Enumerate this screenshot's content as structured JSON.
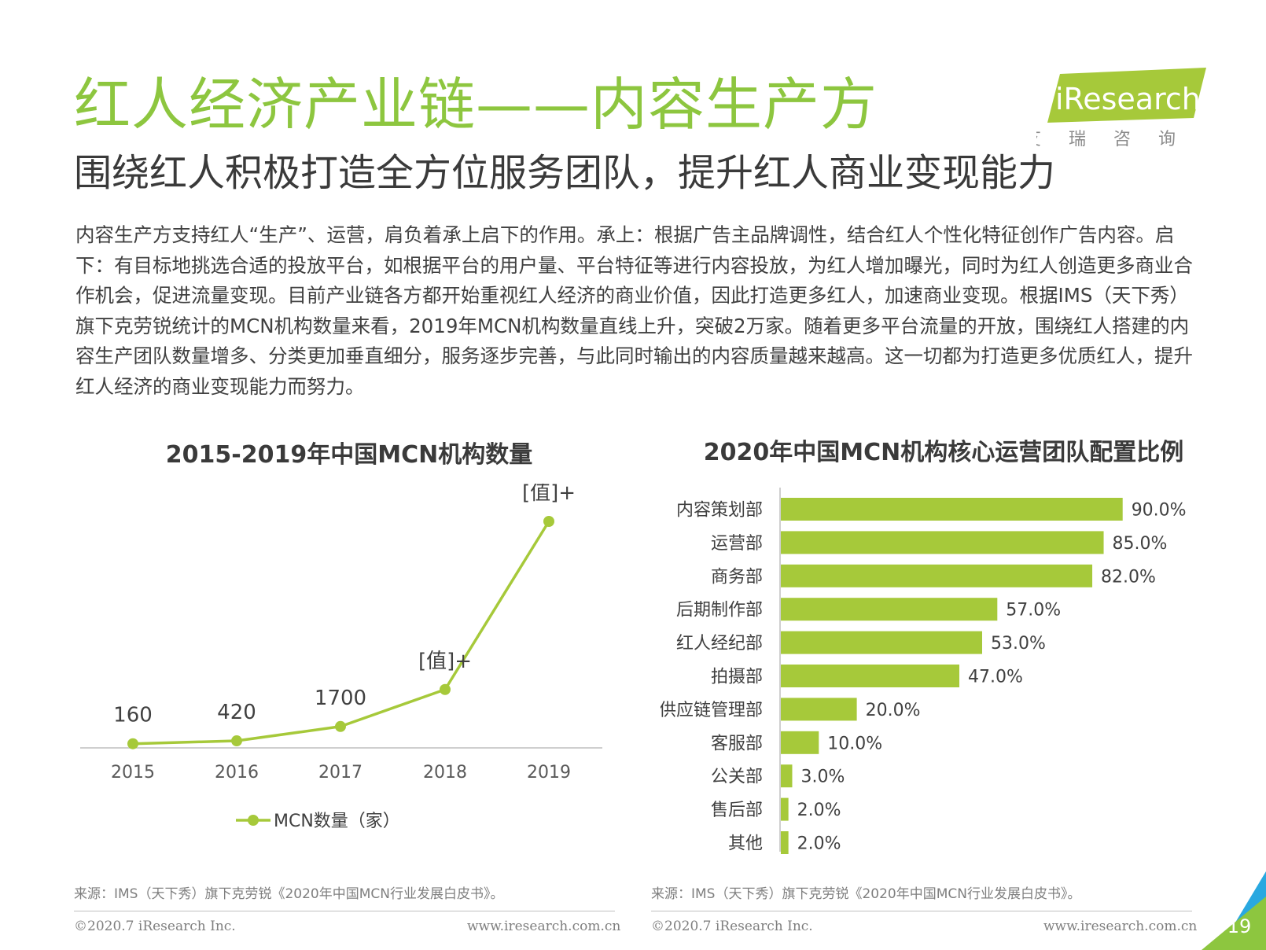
{
  "header": {
    "title": "红人经济产业链——内容生产方",
    "subtitle": "围绕红人积极打造全方位服务团队，提升红人商业变现能力",
    "logo_text": "iResearch",
    "logo_sub": "艾 瑞 咨 询"
  },
  "body": {
    "paragraph": "内容生产方支持红人“生产”、运营，肩负着承上启下的作用。承上：根据广告主品牌调性，结合红人个性化特征创作广告内容。启下：有目标地挑选合适的投放平台，如根据平台的用户量、平台特征等进行内容投放，为红人增加曝光，同时为红人创造更多商业合作机会，促进流量变现。目前产业链各方都开始重视红人经济的商业价值，因此打造更多红人，加速商业变现。根据IMS（天下秀）旗下克劳锐统计的MCN机构数量来看，2019年MCN机构数量直线上升，突破2万家。随着更多平台流量的开放，围绕红人搭建的内容生产团队数量增多、分类更加垂直细分，服务逐步完善，与此同时输出的内容质量越来越高。这一切都为打造更多优质红人，提升红人经济的商业变现能力而努力。"
  },
  "chart_data": [
    {
      "type": "line",
      "title": "2015-2019年中国MCN机构数量",
      "x": [
        "2015",
        "2016",
        "2017",
        "2018",
        "2019"
      ],
      "series": [
        {
          "name": "MCN数量（家）",
          "values": [
            160,
            420,
            1700,
            5000,
            20000
          ],
          "labels": [
            "160",
            "420",
            "1700",
            "[值]+",
            "[值]+"
          ]
        }
      ],
      "ylim": [
        0,
        20000
      ],
      "legend": "bottom",
      "grid": false,
      "color": "#a6c93a"
    },
    {
      "type": "bar",
      "orientation": "horizontal",
      "title": "2020年中国MCN机构核心运营团队配置比例",
      "categories": [
        "内容策划部",
        "运营部",
        "商务部",
        "后期制作部",
        "红人经纪部",
        "拍摄部",
        "供应链管理部",
        "客服部",
        "公关部",
        "售后部",
        "其他"
      ],
      "values": [
        90.0,
        85.0,
        82.0,
        57.0,
        53.0,
        47.0,
        20.0,
        10.0,
        3.0,
        2.0,
        2.0
      ],
      "value_labels": [
        "90.0%",
        "85.0%",
        "82.0%",
        "57.0%",
        "53.0%",
        "47.0%",
        "20.0%",
        "10.0%",
        "3.0%",
        "2.0%",
        "2.0%"
      ],
      "xlim": [
        0,
        100
      ],
      "grid": false,
      "color": "#a6c93a"
    }
  ],
  "sources": {
    "left": "来源：IMS（天下秀）旗下克劳锐《2020年中国MCN行业发展白皮书》。",
    "right": "来源：IMS（天下秀）旗下克劳锐《2020年中国MCN行业发展白皮书》。"
  },
  "footer": {
    "copyright_left": "©2020.7 iResearch Inc.",
    "url_left": "www.iresearch.com.cn",
    "copyright_right": "©2020.7 iResearch Inc.",
    "url_right": "www.iresearch.com.cn",
    "page_number": "19"
  },
  "colors": {
    "accent": "#8dc63f",
    "bar": "#a6c93a",
    "corner_blue": "#29a8e0"
  }
}
